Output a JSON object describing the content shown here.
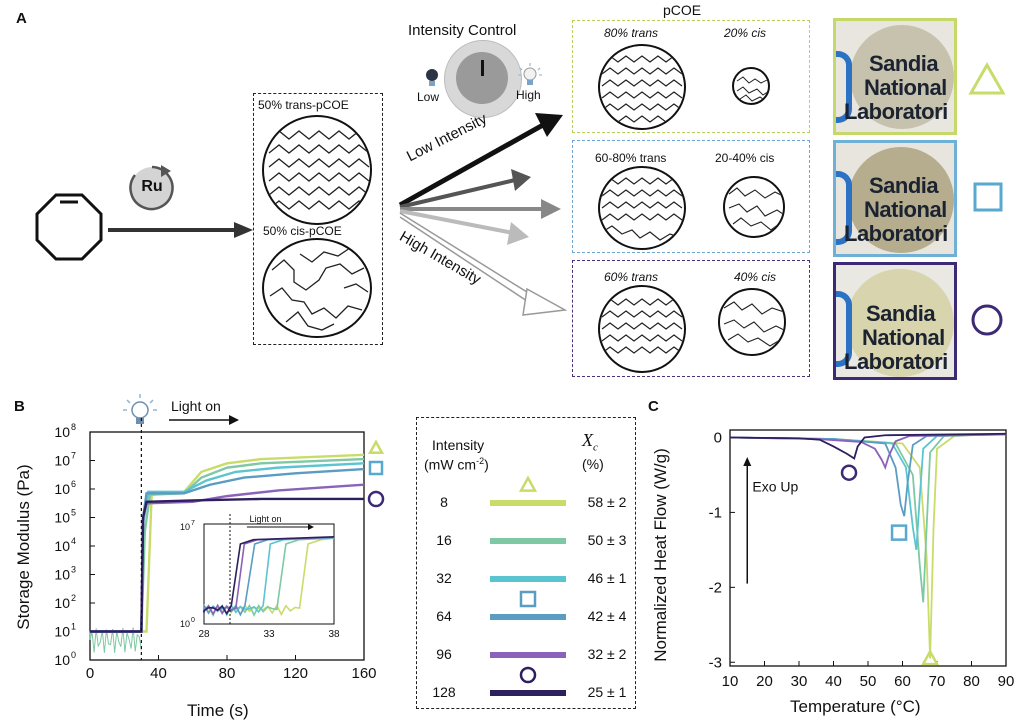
{
  "panels": {
    "a": "A",
    "b": "B",
    "c": "C"
  },
  "panelA": {
    "catalyst": "Ru",
    "intensity_control": {
      "title": "Intensity Control",
      "low": "Low",
      "high": "High"
    },
    "mix": {
      "trans_label": "50% trans-pCOE",
      "cis_label": "50% cis-pCOE"
    },
    "arrows": {
      "low": "Low Intensity",
      "high": "High Intensity"
    },
    "product_title": "pCOE",
    "rows": [
      {
        "trans": "80% trans",
        "cis": "20% cis",
        "color": "#e6efb3",
        "border": "#b9d05a",
        "marker": "triangle",
        "marker_color": "#c7dc6a"
      },
      {
        "trans": "60-80% trans",
        "cis": "20-40% cis",
        "color": "#c8dced",
        "border": "#6ea6cf",
        "marker": "square",
        "marker_color": "#58a8cf"
      },
      {
        "trans": "60% trans",
        "cis": "40% cis",
        "color": "#cfc5dd",
        "border": "#4b2f7a",
        "marker": "circle",
        "marker_color": "#3d2a74"
      }
    ],
    "photo_text": [
      "Sandia",
      "National",
      "Laboratori"
    ]
  },
  "panelB": {
    "light_on": "Light on",
    "ylabel": "Storage Modulus (Pa)",
    "xlabel": "Time (s)",
    "xticks": [
      "0",
      "40",
      "80",
      "120",
      "160"
    ],
    "yticks": [
      "10",
      "10",
      "10",
      "10",
      "10",
      "10",
      "10",
      "10",
      "10"
    ],
    "yexp": [
      "0",
      "1",
      "2",
      "3",
      "4",
      "5",
      "6",
      "7",
      "8"
    ],
    "inset": {
      "xticks": [
        "28",
        "33",
        "38"
      ],
      "ytop": "10",
      "ytop_exp": "7",
      "ybot": "10",
      "ybot_exp": "0",
      "light_on": "Light on"
    }
  },
  "legend": {
    "head_intensity": "Intensity",
    "head_units": "(mW cm",
    "head_units_exp": "-2",
    "head_units_end": ")",
    "head_x": "X",
    "head_x_sub": "c",
    "head_pct": "(%)",
    "rows": [
      {
        "intensity": "8",
        "xc": "58 ± 2",
        "color": "#c9dc6a",
        "marker": "triangle"
      },
      {
        "intensity": "16",
        "xc": "50 ± 3",
        "color": "#7ec9a4",
        "marker": ""
      },
      {
        "intensity": "32",
        "xc": "46 ± 1",
        "color": "#5cc4d1",
        "marker": ""
      },
      {
        "intensity": "64",
        "xc": "42 ± 4",
        "color": "#5b9cc3",
        "marker": "square"
      },
      {
        "intensity": "96",
        "xc": "32 ± 2",
        "color": "#8b62b9",
        "marker": ""
      },
      {
        "intensity": "128",
        "xc": "25 ± 1",
        "color": "#2e1f5f",
        "marker": "circle"
      }
    ]
  },
  "panelC": {
    "ylabel": "Normalized Heat Flow (W/g)",
    "xlabel": "Temperature (°C)",
    "exo": "Exo Up",
    "xticks": [
      "10",
      "20",
      "30",
      "40",
      "50",
      "60",
      "70",
      "80",
      "90"
    ],
    "yticks": [
      "0",
      "-1",
      "-2",
      "-3"
    ]
  },
  "chart_data": [
    {
      "type": "line",
      "title": "",
      "xlabel": "Time (s)",
      "ylabel": "Storage Modulus (Pa)",
      "xlim": [
        0,
        160
      ],
      "ylim_log10": [
        0,
        8
      ],
      "series": [
        {
          "name": "8",
          "x": [
            0,
            30,
            33,
            36,
            55,
            65,
            80,
            100,
            160
          ],
          "log10_y": [
            1.0,
            1.0,
            1.0,
            5.8,
            5.9,
            6.6,
            6.9,
            7.05,
            7.2
          ]
        },
        {
          "name": "16",
          "x": [
            0,
            30,
            32,
            35,
            55,
            65,
            80,
            100,
            160
          ],
          "log10_y": [
            1.0,
            1.0,
            4.5,
            5.8,
            5.85,
            6.4,
            6.75,
            6.9,
            7.05
          ]
        },
        {
          "name": "32",
          "x": [
            0,
            30,
            31,
            34,
            55,
            68,
            85,
            110,
            160
          ],
          "log10_y": [
            1.0,
            1.0,
            4.8,
            5.9,
            5.9,
            6.3,
            6.6,
            6.75,
            6.9
          ]
        },
        {
          "name": "64",
          "x": [
            0,
            30,
            31,
            33,
            55,
            70,
            90,
            120,
            160
          ],
          "log10_y": [
            1.0,
            1.0,
            5.0,
            5.85,
            5.85,
            6.15,
            6.4,
            6.55,
            6.7
          ]
        },
        {
          "name": "96",
          "x": [
            0,
            30,
            31,
            33,
            60,
            80,
            110,
            160
          ],
          "log10_y": [
            1.0,
            1.0,
            5.0,
            5.5,
            5.55,
            5.75,
            5.95,
            6.15
          ]
        },
        {
          "name": "128",
          "x": [
            0,
            30,
            31,
            33,
            60,
            100,
            160
          ],
          "log10_y": [
            1.0,
            1.0,
            5.0,
            5.55,
            5.6,
            5.65,
            5.65
          ]
        }
      ]
    },
    {
      "type": "line",
      "title": "",
      "xlabel": "Temperature (°C)",
      "ylabel": "Normalized Heat Flow (W/g)",
      "xlim": [
        10,
        90
      ],
      "ylim": [
        -3.05,
        0.1
      ],
      "series": [
        {
          "name": "8",
          "x": [
            10,
            40,
            60,
            65,
            67,
            68,
            69,
            70,
            75,
            90
          ],
          "y": [
            0,
            -0.02,
            -0.08,
            -0.4,
            -1.6,
            -2.95,
            -1.2,
            -0.15,
            0.02,
            0.05
          ]
        },
        {
          "name": "16",
          "x": [
            10,
            40,
            58,
            63,
            65,
            66,
            67,
            68,
            72,
            90
          ],
          "y": [
            0,
            -0.02,
            -0.08,
            -0.5,
            -1.7,
            -2.2,
            -1.2,
            -0.2,
            0.02,
            0.05
          ]
        },
        {
          "name": "32",
          "x": [
            10,
            40,
            57,
            61,
            63,
            64,
            65,
            66,
            70,
            90
          ],
          "y": [
            0,
            -0.02,
            -0.08,
            -0.4,
            -1.2,
            -1.5,
            -0.8,
            -0.15,
            0.02,
            0.05
          ]
        },
        {
          "name": "64",
          "x": [
            10,
            40,
            55,
            58,
            59.5,
            60.5,
            61.5,
            63,
            67,
            90
          ],
          "y": [
            0,
            -0.02,
            -0.08,
            -0.4,
            -0.9,
            -1.05,
            -0.6,
            -0.1,
            0.02,
            0.04
          ]
        },
        {
          "name": "96",
          "x": [
            10,
            35,
            48,
            52,
            54,
            55,
            56,
            58,
            62,
            90
          ],
          "y": [
            0,
            -0.02,
            -0.06,
            -0.15,
            -0.3,
            -0.4,
            -0.25,
            -0.05,
            0.02,
            0.04
          ]
        },
        {
          "name": "128",
          "x": [
            10,
            30,
            36,
            40,
            44,
            46,
            47,
            49,
            55,
            90
          ],
          "y": [
            0,
            -0.01,
            -0.03,
            -0.12,
            -0.22,
            -0.28,
            -0.12,
            0.0,
            0.03,
            0.05
          ]
        }
      ]
    }
  ]
}
